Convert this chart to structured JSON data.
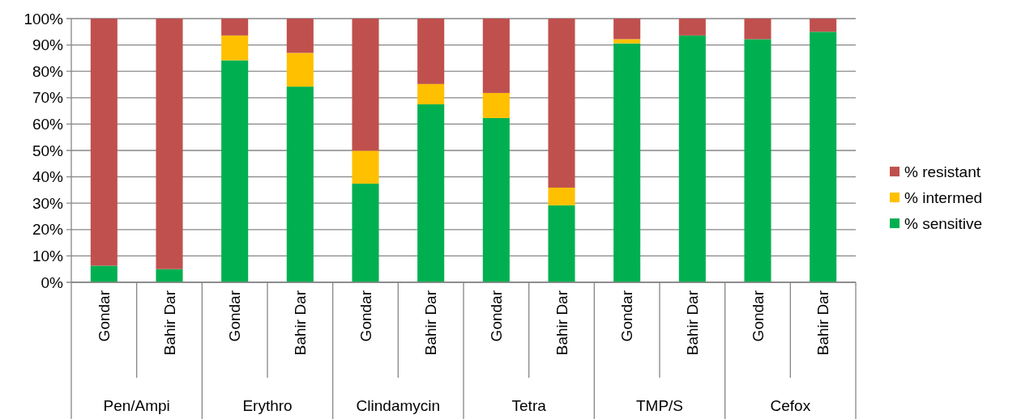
{
  "chart_data": {
    "type": "bar",
    "stacked": true,
    "categories": [
      "Gondar",
      "Bahir Dar",
      "Gondar",
      "Bahir Dar",
      "Gondar",
      "Bahir Dar",
      "Gondar",
      "Bahir Dar",
      "Gondar",
      "Bahir Dar",
      "Gondar",
      "Bahir Dar"
    ],
    "annotations": [
      "Pen/Ampi",
      "Erythro",
      "Clindamycin",
      "Tetra",
      "TMP/S",
      "Cefox"
    ],
    "series": [
      {
        "name": "% sensitive",
        "color": "#00b050",
        "values": [
          6.3,
          5.0,
          84.2,
          74.2,
          37.4,
          67.5,
          62.3,
          29.2,
          90.6,
          93.6,
          92.2,
          95.0
        ]
      },
      {
        "name": "% intermed",
        "color": "#ffc000",
        "values": [
          0,
          0,
          9.4,
          12.8,
          12.5,
          7.7,
          9.5,
          6.7,
          1.6,
          0,
          0,
          0
        ]
      },
      {
        "name": "% resistant",
        "color": "#c0504d",
        "values": [
          93.7,
          95.0,
          6.4,
          13.0,
          50.1,
          24.8,
          28.2,
          64.1,
          7.8,
          6.4,
          7.8,
          5.0
        ]
      }
    ],
    "ylim": [
      0,
      100
    ],
    "yticks": [
      {
        "value": 0,
        "label": "0%"
      },
      {
        "value": 10,
        "label": "10%"
      },
      {
        "value": 20,
        "label": "20%"
      },
      {
        "value": 30,
        "label": "30%"
      },
      {
        "value": 40,
        "label": "40%"
      },
      {
        "value": 50,
        "label": "50%"
      },
      {
        "value": 60,
        "label": "60%"
      },
      {
        "value": 70,
        "label": "70%"
      },
      {
        "value": 80,
        "label": "80%"
      },
      {
        "value": 90,
        "label": "90%"
      },
      {
        "value": 100,
        "label": "100%"
      }
    ],
    "grid": "y",
    "legend": "right"
  }
}
